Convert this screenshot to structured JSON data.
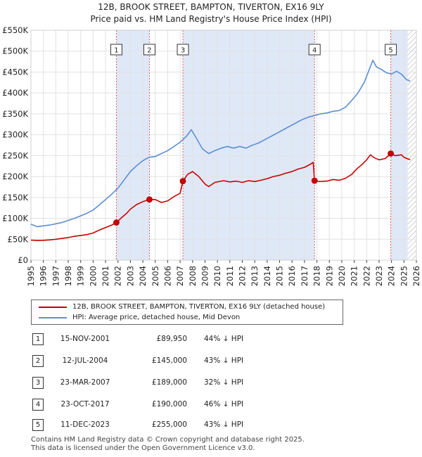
{
  "chart_data": {
    "type": "line",
    "title": "12B, BROOK STREET, BAMPTON, TIVERTON, EX16 9LY",
    "subtitle": "Price paid vs. HM Land Registry's House Price Index (HPI)",
    "xlim": [
      1995,
      2026
    ],
    "ylim": [
      0,
      550000
    ],
    "x_ticks": [
      1995,
      1996,
      1997,
      1998,
      1999,
      2000,
      2001,
      2002,
      2003,
      2004,
      2005,
      2006,
      2007,
      2008,
      2009,
      2010,
      2011,
      2012,
      2013,
      2014,
      2015,
      2016,
      2017,
      2018,
      2019,
      2020,
      2021,
      2022,
      2023,
      2024,
      2025,
      2026
    ],
    "y_ticks": [
      {
        "value": 0,
        "label": "£0"
      },
      {
        "value": 50000,
        "label": "£50K"
      },
      {
        "value": 100000,
        "label": "£100K"
      },
      {
        "value": 150000,
        "label": "£150K"
      },
      {
        "value": 200000,
        "label": "£200K"
      },
      {
        "value": 250000,
        "label": "£250K"
      },
      {
        "value": 300000,
        "label": "£300K"
      },
      {
        "value": 350000,
        "label": "£350K"
      },
      {
        "value": 400000,
        "label": "£400K"
      },
      {
        "value": 450000,
        "label": "£450K"
      },
      {
        "value": 500000,
        "label": "£500K"
      },
      {
        "value": 550000,
        "label": "£550K"
      }
    ],
    "series": [
      {
        "name": "12B, BROOK STREET, BAMPTON, TIVERTON, EX16 9LY (detached house)",
        "color": "#cc0000",
        "points": [
          [
            1995.0,
            48000
          ],
          [
            1995.5,
            47000
          ],
          [
            1996.0,
            47500
          ],
          [
            1996.5,
            48500
          ],
          [
            1997.0,
            50000
          ],
          [
            1997.5,
            52000
          ],
          [
            1998.0,
            54000
          ],
          [
            1998.5,
            57000
          ],
          [
            1999.0,
            59000
          ],
          [
            1999.5,
            61000
          ],
          [
            2000.0,
            65000
          ],
          [
            2000.5,
            72000
          ],
          [
            2001.0,
            78000
          ],
          [
            2001.5,
            84000
          ],
          [
            2001.87,
            89950
          ],
          [
            2002.3,
            102000
          ],
          [
            2002.7,
            112000
          ],
          [
            2003.0,
            122000
          ],
          [
            2003.5,
            133000
          ],
          [
            2004.0,
            140000
          ],
          [
            2004.53,
            145000
          ],
          [
            2005.0,
            145000
          ],
          [
            2005.5,
            138000
          ],
          [
            2006.0,
            142000
          ],
          [
            2006.5,
            152000
          ],
          [
            2007.0,
            160000
          ],
          [
            2007.22,
            189000
          ],
          [
            2007.6,
            205000
          ],
          [
            2008.0,
            212000
          ],
          [
            2008.5,
            200000
          ],
          [
            2009.0,
            182000
          ],
          [
            2009.3,
            176000
          ],
          [
            2009.8,
            186000
          ],
          [
            2010.5,
            190000
          ],
          [
            2011.0,
            187000
          ],
          [
            2011.5,
            189000
          ],
          [
            2012.0,
            186000
          ],
          [
            2012.5,
            190000
          ],
          [
            2013.0,
            188000
          ],
          [
            2013.5,
            191000
          ],
          [
            2014.0,
            195000
          ],
          [
            2014.5,
            200000
          ],
          [
            2015.0,
            203000
          ],
          [
            2015.5,
            208000
          ],
          [
            2016.0,
            212000
          ],
          [
            2016.5,
            218000
          ],
          [
            2017.0,
            222000
          ],
          [
            2017.4,
            228000
          ],
          [
            2017.7,
            234000
          ],
          [
            2017.81,
            190000
          ],
          [
            2018.2,
            188000
          ],
          [
            2018.8,
            189000
          ],
          [
            2019.3,
            193000
          ],
          [
            2019.8,
            191000
          ],
          [
            2020.3,
            196000
          ],
          [
            2020.8,
            205000
          ],
          [
            2021.2,
            218000
          ],
          [
            2021.6,
            228000
          ],
          [
            2022.0,
            240000
          ],
          [
            2022.3,
            252000
          ],
          [
            2022.6,
            245000
          ],
          [
            2023.0,
            240000
          ],
          [
            2023.5,
            243000
          ],
          [
            2023.94,
            255000
          ],
          [
            2024.3,
            250000
          ],
          [
            2024.8,
            252000
          ],
          [
            2025.0,
            246000
          ],
          [
            2025.5,
            240000
          ]
        ]
      },
      {
        "name": "HPI: Average price, detached house, Mid Devon",
        "color": "#5b8fd4",
        "points": [
          [
            1995.0,
            86000
          ],
          [
            1995.5,
            80000
          ],
          [
            1996.0,
            82000
          ],
          [
            1996.5,
            84000
          ],
          [
            1997.0,
            87000
          ],
          [
            1997.5,
            90000
          ],
          [
            1998.0,
            95000
          ],
          [
            1998.5,
            100000
          ],
          [
            1999.0,
            106000
          ],
          [
            1999.5,
            112000
          ],
          [
            2000.0,
            120000
          ],
          [
            2000.5,
            132000
          ],
          [
            2001.0,
            145000
          ],
          [
            2001.5,
            158000
          ],
          [
            2002.0,
            172000
          ],
          [
            2002.5,
            192000
          ],
          [
            2003.0,
            212000
          ],
          [
            2003.5,
            226000
          ],
          [
            2004.0,
            238000
          ],
          [
            2004.5,
            246000
          ],
          [
            2005.0,
            248000
          ],
          [
            2005.5,
            255000
          ],
          [
            2006.0,
            262000
          ],
          [
            2006.5,
            272000
          ],
          [
            2007.0,
            282000
          ],
          [
            2007.5,
            296000
          ],
          [
            2007.9,
            312000
          ],
          [
            2008.3,
            292000
          ],
          [
            2008.8,
            266000
          ],
          [
            2009.3,
            255000
          ],
          [
            2009.8,
            262000
          ],
          [
            2010.3,
            268000
          ],
          [
            2010.8,
            272000
          ],
          [
            2011.3,
            268000
          ],
          [
            2011.8,
            272000
          ],
          [
            2012.3,
            268000
          ],
          [
            2012.8,
            275000
          ],
          [
            2013.3,
            280000
          ],
          [
            2013.8,
            288000
          ],
          [
            2014.3,
            296000
          ],
          [
            2014.8,
            304000
          ],
          [
            2015.3,
            312000
          ],
          [
            2015.8,
            320000
          ],
          [
            2016.3,
            328000
          ],
          [
            2016.8,
            336000
          ],
          [
            2017.3,
            342000
          ],
          [
            2017.8,
            346000
          ],
          [
            2018.3,
            350000
          ],
          [
            2018.8,
            352000
          ],
          [
            2019.3,
            356000
          ],
          [
            2019.8,
            358000
          ],
          [
            2020.3,
            366000
          ],
          [
            2020.8,
            382000
          ],
          [
            2021.3,
            400000
          ],
          [
            2021.8,
            425000
          ],
          [
            2022.2,
            455000
          ],
          [
            2022.5,
            478000
          ],
          [
            2022.8,
            462000
          ],
          [
            2023.2,
            456000
          ],
          [
            2023.6,
            448000
          ],
          [
            2024.0,
            445000
          ],
          [
            2024.4,
            452000
          ],
          [
            2024.8,
            445000
          ],
          [
            2025.2,
            432000
          ],
          [
            2025.5,
            428000
          ]
        ]
      }
    ],
    "sales": [
      {
        "num": "1",
        "date": "15-NOV-2001",
        "price": "£89,950",
        "hpi": "44% ↓ HPI",
        "x": 2001.87,
        "value": 89950
      },
      {
        "num": "2",
        "date": "12-JUL-2004",
        "price": "£145,000",
        "hpi": "43% ↓ HPI",
        "x": 2004.53,
        "value": 145000
      },
      {
        "num": "3",
        "date": "23-MAR-2007",
        "price": "£189,000",
        "hpi": "32% ↓ HPI",
        "x": 2007.22,
        "value": 189000
      },
      {
        "num": "4",
        "date": "23-OCT-2017",
        "price": "£190,000",
        "hpi": "46% ↓ HPI",
        "x": 2017.81,
        "value": 190000
      },
      {
        "num": "5",
        "date": "11-DEC-2023",
        "price": "£255,000",
        "hpi": "43% ↓ HPI",
        "x": 2023.94,
        "value": 255000
      }
    ],
    "shaded_ranges": [
      [
        2001.87,
        2004.53
      ],
      [
        2007.22,
        2017.81
      ],
      [
        2023.94,
        2025.3
      ]
    ],
    "hatched_range": [
      2025.3,
      2026
    ],
    "grid": true,
    "legend": "below chart"
  },
  "footer": {
    "line1": "Contains HM Land Registry data © Crown copyright and database right 2025.",
    "line2": "This data is licensed under the Open Government Licence v3.0."
  }
}
